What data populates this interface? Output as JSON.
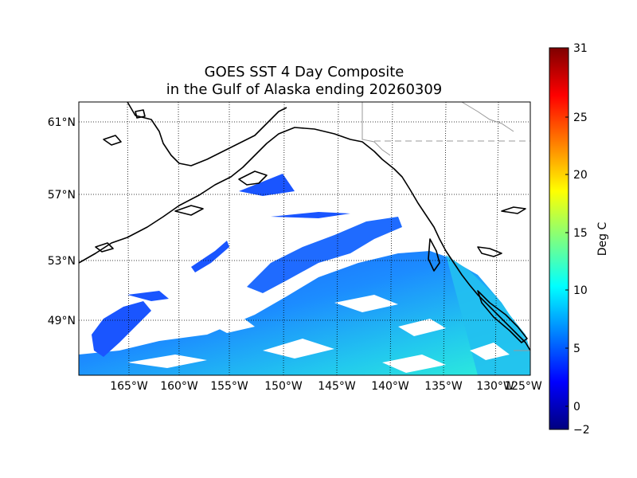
{
  "map": {
    "title_line1": "GOES SST 4 Day Composite",
    "title_line2": "in the Gulf of Alaska ending 20260309",
    "longitude_labels": [
      "165°W",
      "160°W",
      "155°W",
      "150°W",
      "145°W",
      "140°W",
      "135°W",
      "130°W",
      "125°W"
    ],
    "latitude_labels": [
      "61°N",
      "57°N",
      "53°N",
      "49°N"
    ],
    "grid": "dotted",
    "land_fill": "white",
    "coastline_color": "#000000",
    "border_color": "#999999"
  },
  "colorbar": {
    "label": "Deg C",
    "ticks": [
      "31",
      "25",
      "20",
      "15",
      "10",
      "5",
      "0",
      "−2"
    ],
    "min": -2,
    "max": 31,
    "colormap": "jet",
    "colors": [
      "#00007f",
      "#0000ff",
      "#007fff",
      "#00ffff",
      "#7fff7f",
      "#ffff00",
      "#ff7f00",
      "#ff0000",
      "#7f0000"
    ]
  }
}
